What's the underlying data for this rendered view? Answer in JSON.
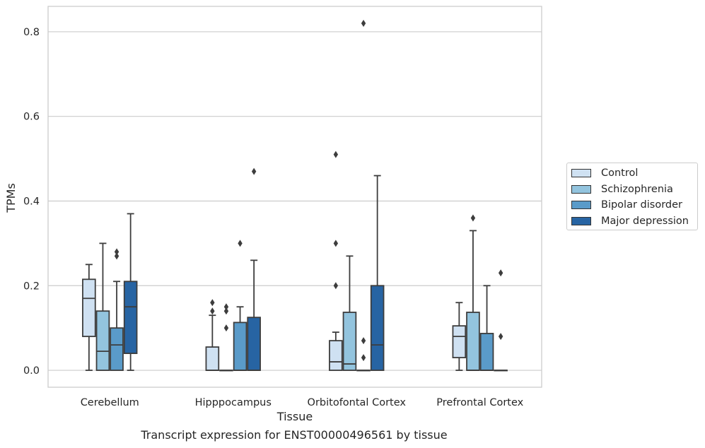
{
  "chart_data": {
    "type": "box",
    "title": "",
    "caption": "Transcript expression for ENST00000496561 by tissue",
    "xlabel": "Tissue",
    "ylabel": "TPMs",
    "ylim": [
      -0.04,
      0.86
    ],
    "yticks": [
      "0.0",
      "0.2",
      "0.4",
      "0.6",
      "0.8"
    ],
    "ytick_values": [
      0.0,
      0.2,
      0.4,
      0.6,
      0.8
    ],
    "grid": "horizontal",
    "legend_position": "right",
    "categories": [
      "Cerebellum",
      "Hipppocampus",
      "Orbitofontal Cortex",
      "Prefrontal Cortex"
    ],
    "series": [
      {
        "name": "Control",
        "color": "#cfe1f2",
        "boxes": [
          {
            "whislo": 0.0,
            "q1": 0.08,
            "med": 0.17,
            "q3": 0.215,
            "whishi": 0.25,
            "fliers": []
          },
          {
            "whislo": 0.0,
            "q1": 0.0,
            "med": 0.0,
            "q3": 0.055,
            "whishi": 0.13,
            "fliers": [
              0.14,
              0.16
            ]
          },
          {
            "whislo": 0.0,
            "q1": 0.0,
            "med": 0.02,
            "q3": 0.07,
            "whishi": 0.09,
            "fliers": [
              0.2,
              0.3,
              0.51
            ]
          },
          {
            "whislo": 0.0,
            "q1": 0.03,
            "med": 0.08,
            "q3": 0.105,
            "whishi": 0.16,
            "fliers": []
          }
        ]
      },
      {
        "name": "Schizophrenia",
        "color": "#93c4de",
        "boxes": [
          {
            "whislo": 0.0,
            "q1": 0.0,
            "med": 0.045,
            "q3": 0.14,
            "whishi": 0.3,
            "fliers": []
          },
          {
            "whislo": 0.0,
            "q1": 0.0,
            "med": 0.0,
            "q3": 0.0,
            "whishi": 0.0,
            "fliers": [
              0.1,
              0.14,
              0.15
            ]
          },
          {
            "whislo": 0.0,
            "q1": 0.0,
            "med": 0.015,
            "q3": 0.137,
            "whishi": 0.27,
            "fliers": []
          },
          {
            "whislo": 0.0,
            "q1": 0.0,
            "med": 0.0,
            "q3": 0.137,
            "whishi": 0.33,
            "fliers": [
              0.36
            ]
          }
        ]
      },
      {
        "name": "Bipolar disorder",
        "color": "#5a9bc9",
        "boxes": [
          {
            "whislo": 0.0,
            "q1": 0.0,
            "med": 0.06,
            "q3": 0.1,
            "whishi": 0.21,
            "fliers": [
              0.27,
              0.28
            ]
          },
          {
            "whislo": 0.0,
            "q1": 0.0,
            "med": 0.0,
            "q3": 0.113,
            "whishi": 0.15,
            "fliers": [
              0.3
            ]
          },
          {
            "whislo": 0.0,
            "q1": 0.0,
            "med": 0.0,
            "q3": 0.0,
            "whishi": 0.0,
            "fliers": [
              0.03,
              0.07,
              0.82
            ]
          },
          {
            "whislo": 0.0,
            "q1": 0.0,
            "med": 0.0,
            "q3": 0.087,
            "whishi": 0.2,
            "fliers": []
          }
        ]
      },
      {
        "name": "Major depression",
        "color": "#2764a3",
        "boxes": [
          {
            "whislo": 0.0,
            "q1": 0.04,
            "med": 0.15,
            "q3": 0.21,
            "whishi": 0.37,
            "fliers": []
          },
          {
            "whislo": 0.0,
            "q1": 0.0,
            "med": 0.0,
            "q3": 0.125,
            "whishi": 0.26,
            "fliers": [
              0.47
            ]
          },
          {
            "whislo": 0.0,
            "q1": 0.0,
            "med": 0.06,
            "q3": 0.2,
            "whishi": 0.46,
            "fliers": []
          },
          {
            "whislo": 0.0,
            "q1": 0.0,
            "med": 0.0,
            "q3": 0.0,
            "whishi": 0.0,
            "fliers": [
              0.08,
              0.23
            ]
          }
        ]
      }
    ]
  }
}
